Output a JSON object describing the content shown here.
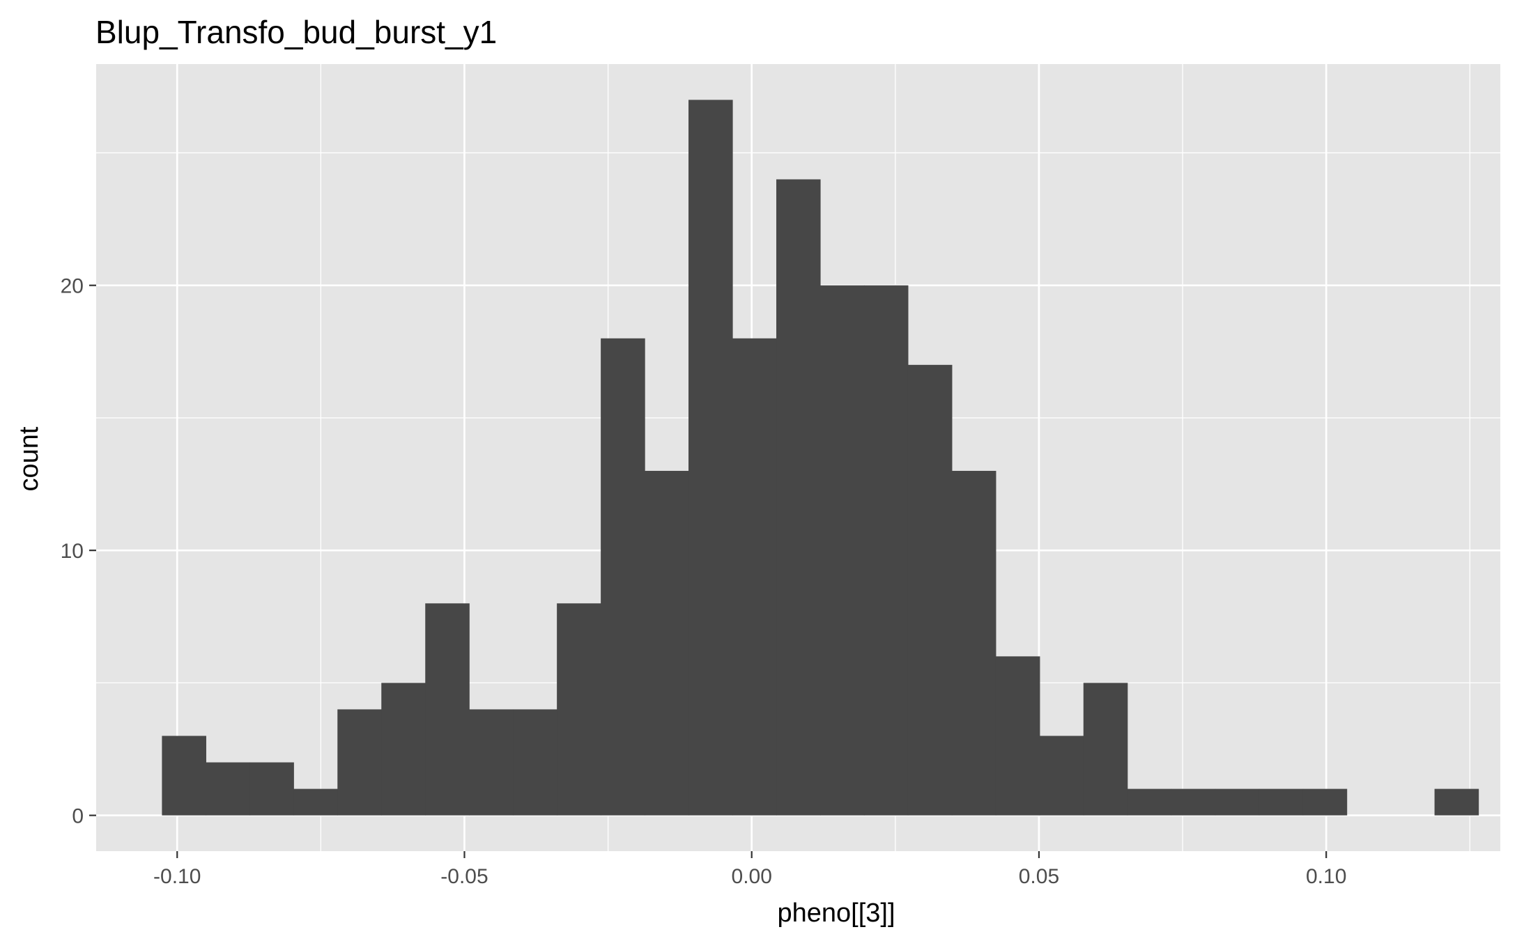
{
  "chart_data": {
    "type": "bar",
    "subtype": "histogram",
    "title": "Blup_Transfo_bud_burst_y1",
    "xlabel": "pheno[[3]]",
    "ylabel": "count",
    "bin_width": 0.007638,
    "bins": [
      {
        "x0": -0.10265,
        "count": 3
      },
      {
        "x0": -0.09501,
        "count": 2
      },
      {
        "x0": -0.08738,
        "count": 2
      },
      {
        "x0": -0.07974,
        "count": 1
      },
      {
        "x0": -0.0721,
        "count": 4
      },
      {
        "x0": -0.06446,
        "count": 5
      },
      {
        "x0": -0.05682,
        "count": 8
      },
      {
        "x0": -0.04919,
        "count": 4
      },
      {
        "x0": -0.04155,
        "count": 4
      },
      {
        "x0": -0.03391,
        "count": 8
      },
      {
        "x0": -0.02627,
        "count": 18
      },
      {
        "x0": -0.01864,
        "count": 13
      },
      {
        "x0": -0.011,
        "count": 27
      },
      {
        "x0": -0.00336,
        "count": 18
      },
      {
        "x0": 0.00428,
        "count": 24
      },
      {
        "x0": 0.01192,
        "count": 20
      },
      {
        "x0": 0.01955,
        "count": 20
      },
      {
        "x0": 0.02719,
        "count": 17
      },
      {
        "x0": 0.03483,
        "count": 13
      },
      {
        "x0": 0.04247,
        "count": 6
      },
      {
        "x0": 0.05011,
        "count": 3
      },
      {
        "x0": 0.05774,
        "count": 5
      },
      {
        "x0": 0.06538,
        "count": 1
      },
      {
        "x0": 0.07302,
        "count": 1
      },
      {
        "x0": 0.08066,
        "count": 1
      },
      {
        "x0": 0.08829,
        "count": 1
      },
      {
        "x0": 0.09593,
        "count": 1
      },
      {
        "x0": 0.10357,
        "count": 0
      },
      {
        "x0": 0.11121,
        "count": 0
      },
      {
        "x0": 0.11885,
        "count": 1
      }
    ],
    "xlim": [
      -0.1141,
      0.1303
    ],
    "ylim": [
      -1.35,
      28.35
    ],
    "x_ticks": [
      -0.1,
      -0.05,
      0.0,
      0.05,
      0.1
    ],
    "x_tick_labels": [
      "-0.10",
      "-0.05",
      "0.00",
      "0.05",
      "0.10"
    ],
    "x_minor_ticks": [
      -0.075,
      -0.025,
      0.025,
      0.075,
      0.125
    ],
    "y_ticks": [
      0,
      10,
      20
    ],
    "y_tick_labels": [
      "0",
      "10",
      "20"
    ],
    "y_minor_ticks": [
      5,
      15,
      25
    ],
    "grid": true,
    "legend": "none",
    "colors": {
      "panel_background": "#e5e5e5",
      "grid": "#ffffff",
      "bar_fill": "#474747",
      "tick_label": "#4d4d4d",
      "tick_mark": "#333333"
    }
  }
}
